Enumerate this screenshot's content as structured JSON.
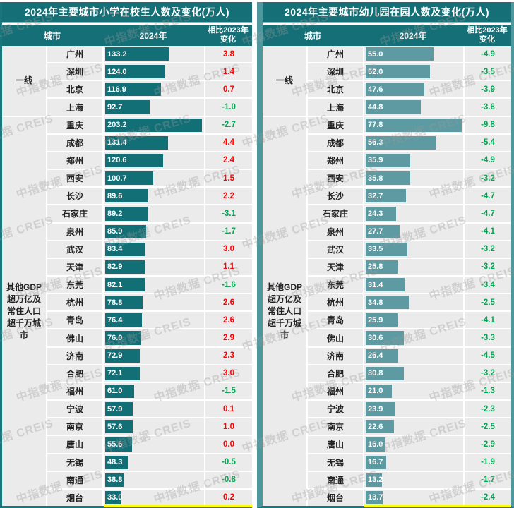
{
  "watermark": "中指数据 CREIS",
  "colors": {
    "header_teal": "#156f76",
    "left_bar": "#136f76",
    "right_bar": "#5d9aa2",
    "positive_change": "#fe0000",
    "negative_change": "#00a651",
    "row_bg": "#ebebeb",
    "bottom_highlight": "#ffff00"
  },
  "chart_data": [
    {
      "type": "bar",
      "title": "2024年主要城市小学在校生人数及变化(万人)",
      "headers": {
        "city": "城市",
        "year": "2024年",
        "change_line1": "相比2023年",
        "change_line2": "变化"
      },
      "groups": [
        {
          "label": "一线",
          "span": 4
        },
        {
          "label": "其他GDP超万亿及常住人口超千万城市",
          "span": 22
        }
      ],
      "categories": [
        "广州",
        "深圳",
        "北京",
        "上海",
        "重庆",
        "成都",
        "郑州",
        "西安",
        "长沙",
        "石家庄",
        "泉州",
        "武汉",
        "天津",
        "东莞",
        "杭州",
        "青岛",
        "佛山",
        "济南",
        "合肥",
        "福州",
        "宁波",
        "南京",
        "唐山",
        "无锡",
        "南通",
        "烟台"
      ],
      "series": [
        {
          "name": "2024年",
          "values": [
            133.2,
            124.0,
            116.9,
            92.7,
            203.2,
            131.4,
            120.6,
            100.7,
            89.6,
            89.2,
            85.9,
            83.4,
            82.9,
            82.1,
            78.8,
            76.4,
            76.0,
            72.9,
            72.1,
            61.0,
            57.9,
            57.6,
            55.6,
            48.3,
            38.8,
            33.0
          ]
        },
        {
          "name": "相比2023年变化",
          "values": [
            3.8,
            1.4,
            0.7,
            -1.0,
            -2.7,
            4.4,
            2.4,
            1.5,
            2.2,
            -3.1,
            -1.7,
            3.0,
            1.1,
            -1.6,
            2.6,
            2.6,
            2.9,
            2.3,
            3.0,
            -1.5,
            0.1,
            1.0,
            0.0,
            -0.5,
            -0.8,
            0.2
          ]
        }
      ],
      "bar_color": "#136f76",
      "xlim": [
        0,
        210
      ],
      "legend": "none",
      "grid": "off"
    },
    {
      "type": "bar",
      "title": "2024年主要城市幼儿园在园人数及变化(万人)",
      "headers": {
        "city": "城市",
        "year": "2024年",
        "change_line1": "相比2023年",
        "change_line2": "变化"
      },
      "groups": [
        {
          "label": "一线",
          "span": 4
        },
        {
          "label": "其他GDP超万亿及常住人口超千万城市",
          "span": 22
        }
      ],
      "categories": [
        "广州",
        "深圳",
        "北京",
        "上海",
        "重庆",
        "成都",
        "郑州",
        "西安",
        "长沙",
        "石家庄",
        "泉州",
        "武汉",
        "天津",
        "东莞",
        "杭州",
        "青岛",
        "佛山",
        "济南",
        "合肥",
        "福州",
        "宁波",
        "南京",
        "唐山",
        "无锡",
        "南通",
        "烟台"
      ],
      "series": [
        {
          "name": "2024年",
          "values": [
            55.0,
            52.0,
            47.6,
            44.8,
            77.8,
            56.3,
            35.9,
            35.8,
            32.7,
            24.3,
            27.7,
            33.5,
            25.8,
            31.4,
            34.8,
            25.9,
            30.6,
            26.4,
            30.8,
            21.0,
            23.9,
            22.6,
            16.0,
            16.7,
            13.2,
            13.7
          ]
        },
        {
          "name": "相比2023年变化",
          "values": [
            -4.9,
            -3.5,
            -3.9,
            -3.6,
            -9.8,
            -5.4,
            -4.9,
            -3.2,
            -4.7,
            -4.7,
            -4.1,
            -3.2,
            -3.2,
            -3.4,
            -2.5,
            -4.1,
            -3.3,
            -4.5,
            -3.2,
            -1.3,
            -2.3,
            -2.5,
            -2.9,
            -1.9,
            -1.7,
            -2.4
          ]
        }
      ],
      "bar_color": "#5d9aa2",
      "xlim": [
        0,
        80
      ],
      "legend": "none",
      "grid": "off"
    }
  ]
}
